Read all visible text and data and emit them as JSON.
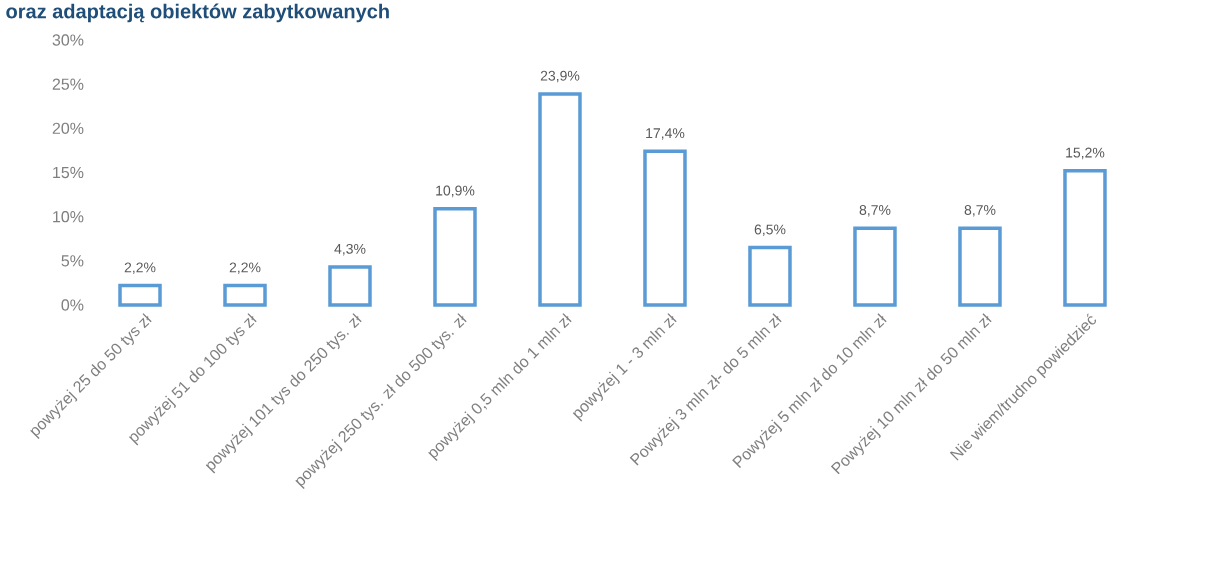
{
  "chart_data": {
    "type": "bar",
    "title": "oraz adaptacją obiektów zabytkowanych",
    "categories": [
      "powyżej 25 do 50 tys zł",
      "powyżej 51 do 100 tys zł",
      "powyżej 101 tys do 250 tys. zł",
      "powyżej 250 tys. zł do 500 tys. zł",
      "powyżej 0,5 mln do 1 mln zł",
      "powyżej 1 - 3 mln zł",
      "Powyżej 3 mln zł- do 5 mln zł",
      "Powyżej 5 mln zł do 10 mln zł",
      "Powyżej 10 mln zł do 50 mln zł",
      "Nie wiem/trudno powiedzieć"
    ],
    "values": [
      2.2,
      2.2,
      4.3,
      10.9,
      23.9,
      17.4,
      6.5,
      8.7,
      8.7,
      15.2
    ],
    "value_labels": [
      "2,2%",
      "2,2%",
      "4,3%",
      "10,9%",
      "23,9%",
      "17,4%",
      "6,5%",
      "8,7%",
      "8,7%",
      "15,2%"
    ],
    "color": "#5b9bd5",
    "ylim": [
      0,
      30
    ],
    "yticks": [
      {
        "value": 0,
        "label": "0%"
      },
      {
        "value": 5,
        "label": "5%"
      },
      {
        "value": 10,
        "label": "10%"
      },
      {
        "value": 15,
        "label": "15%"
      },
      {
        "value": 20,
        "label": "20%"
      },
      {
        "value": 25,
        "label": "25%"
      },
      {
        "value": 30,
        "label": "30%"
      }
    ],
    "grid": false
  }
}
